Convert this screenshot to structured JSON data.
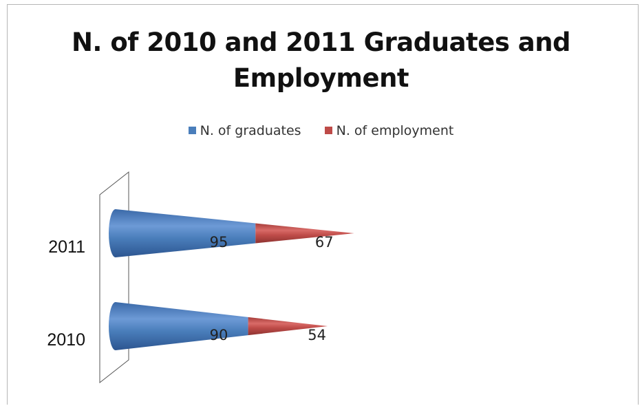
{
  "chart_data": {
    "type": "bar",
    "title": "N. of  2010 and 2011 Graduates and Employment",
    "title_lines": [
      "N. of  2010 and 2011 Graduates and",
      "Employment"
    ],
    "categories": [
      "2010",
      "2011"
    ],
    "series": [
      {
        "name": "N. of graduates",
        "values": [
          90,
          95
        ],
        "color": "#4a7ebb"
      },
      {
        "name": "N. of employment",
        "values": [
          54,
          67
        ],
        "color": "#be4b48"
      }
    ],
    "stacked": true,
    "orientation": "horizontal",
    "shape": "cone",
    "xlim": [
      0,
      240
    ],
    "legend_position": "top",
    "grid": false
  }
}
